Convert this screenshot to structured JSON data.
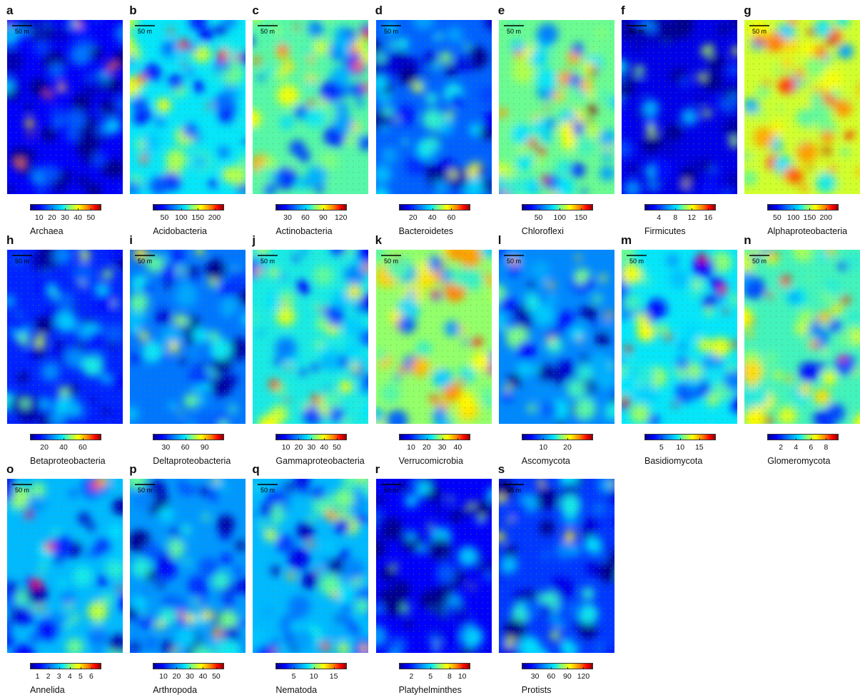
{
  "scale_bar_label": "50 m",
  "colormap": [
    "#00008b",
    "#0000ff",
    "#0080ff",
    "#00e5ff",
    "#7fff7f",
    "#ffff00",
    "#ff7f00",
    "#ff0000",
    "#8b0000"
  ],
  "chart_data": [
    {
      "type": "heatmap",
      "panel": "a",
      "colorbar_label": "Archaea",
      "ticks": [
        "10",
        "20",
        "30",
        "40",
        "50"
      ],
      "range": [
        3,
        57
      ],
      "base_level": 0.12,
      "hotspot_level": 0.65
    },
    {
      "type": "heatmap",
      "panel": "b",
      "colorbar_label": "Acidobacteria",
      "ticks": [
        "50",
        "100",
        "150",
        "200"
      ],
      "range": [
        15,
        225
      ],
      "base_level": 0.38,
      "hotspot_level": 0.8
    },
    {
      "type": "heatmap",
      "panel": "c",
      "colorbar_label": "Actinobacteria",
      "ticks": [
        "30",
        "60",
        "90",
        "120"
      ],
      "range": [
        10,
        128
      ],
      "base_level": 0.46,
      "hotspot_level": 0.75
    },
    {
      "type": "heatmap",
      "panel": "d",
      "colorbar_label": "Bacteroidetes",
      "ticks": [
        "20",
        "40",
        "60"
      ],
      "range": [
        5,
        78
      ],
      "base_level": 0.22,
      "hotspot_level": 0.5
    },
    {
      "type": "heatmap",
      "panel": "e",
      "colorbar_label": "Chloroflexi",
      "ticks": [
        "50",
        "100",
        "150"
      ],
      "range": [
        10,
        175
      ],
      "base_level": 0.48,
      "hotspot_level": 0.85
    },
    {
      "type": "heatmap",
      "panel": "f",
      "colorbar_label": "Firmicutes",
      "ticks": [
        "4",
        "8",
        "12",
        "16"
      ],
      "range": [
        0.5,
        17.5
      ],
      "base_level": 0.1,
      "hotspot_level": 0.5
    },
    {
      "type": "heatmap",
      "panel": "g",
      "colorbar_label": "Alphaproteobacteria",
      "ticks": [
        "50",
        "100",
        "150",
        "200"
      ],
      "range": [
        20,
        235
      ],
      "base_level": 0.58,
      "hotspot_level": 0.82
    },
    {
      "type": "heatmap",
      "panel": "h",
      "colorbar_label": "Betaproteobacteria",
      "ticks": [
        "20",
        "40",
        "60"
      ],
      "range": [
        5,
        78
      ],
      "base_level": 0.16,
      "hotspot_level": 0.45
    },
    {
      "type": "heatmap",
      "panel": "i",
      "colorbar_label": "Deltaproteobacteria",
      "ticks": [
        "30",
        "60",
        "90"
      ],
      "range": [
        10,
        118
      ],
      "base_level": 0.24,
      "hotspot_level": 0.5
    },
    {
      "type": "heatmap",
      "panel": "j",
      "colorbar_label": "Gammaproteobacteria",
      "ticks": [
        "10",
        "20",
        "30",
        "40",
        "50"
      ],
      "range": [
        2,
        57
      ],
      "base_level": 0.4,
      "hotspot_level": 0.7
    },
    {
      "type": "heatmap",
      "panel": "k",
      "colorbar_label": "Verrucomicrobia",
      "ticks": [
        "10",
        "20",
        "30",
        "40"
      ],
      "range": [
        2,
        47
      ],
      "base_level": 0.52,
      "hotspot_level": 0.82
    },
    {
      "type": "heatmap",
      "panel": "l",
      "colorbar_label": "Ascomycota",
      "ticks": [
        "10",
        "20"
      ],
      "range": [
        1,
        30
      ],
      "base_level": 0.26,
      "hotspot_level": 0.6
    },
    {
      "type": "heatmap",
      "panel": "m",
      "colorbar_label": "Basidiomycota",
      "ticks": [
        "5",
        "10",
        "15"
      ],
      "range": [
        0.5,
        19
      ],
      "base_level": 0.38,
      "hotspot_level": 0.8
    },
    {
      "type": "heatmap",
      "panel": "n",
      "colorbar_label": "Glomeromycota",
      "ticks": [
        "2",
        "4",
        "6",
        "8"
      ],
      "range": [
        0.2,
        9.5
      ],
      "base_level": 0.44,
      "hotspot_level": 0.78
    },
    {
      "type": "heatmap",
      "panel": "o",
      "colorbar_label": "Annelida",
      "ticks": [
        "1",
        "2",
        "3",
        "4",
        "5",
        "6"
      ],
      "range": [
        0.3,
        6.8
      ],
      "base_level": 0.32,
      "hotspot_level": 0.7
    },
    {
      "type": "heatmap",
      "panel": "p",
      "colorbar_label": "Arthropoda",
      "ticks": [
        "10",
        "20",
        "30",
        "40",
        "50"
      ],
      "range": [
        2,
        55
      ],
      "base_level": 0.28,
      "hotspot_level": 0.6
    },
    {
      "type": "heatmap",
      "panel": "q",
      "colorbar_label": "Nematoda",
      "ticks": [
        "5",
        "10",
        "15"
      ],
      "range": [
        0.5,
        18
      ],
      "base_level": 0.32,
      "hotspot_level": 0.65
    },
    {
      "type": "heatmap",
      "panel": "r",
      "colorbar_label": "Platyhelminthes",
      "ticks": [
        "2",
        "5",
        "8",
        "10"
      ],
      "range": [
        0,
        11
      ],
      "base_level": 0.12,
      "hotspot_level": 0.45
    },
    {
      "type": "heatmap",
      "panel": "s",
      "colorbar_label": "Protists",
      "ticks": [
        "30",
        "60",
        "90",
        "120"
      ],
      "range": [
        5,
        135
      ],
      "base_level": 0.18,
      "hotspot_level": 0.55
    }
  ]
}
